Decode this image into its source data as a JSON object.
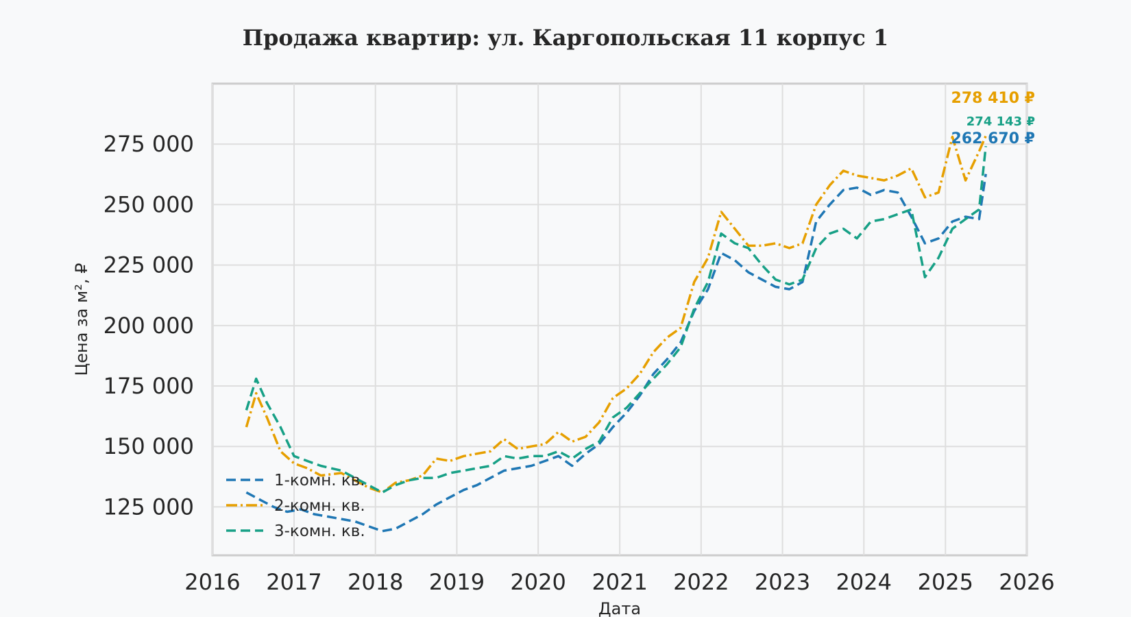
{
  "chart_data": {
    "type": "line",
    "title": "Продажа квартир: ул. Каргопольская 11 корпус 1",
    "xlabel": "Дата",
    "ylabel": "Цена за м², ₽",
    "xlim": [
      "2016-01-01",
      "2026-01-01"
    ],
    "ylim": [
      105000,
      300000
    ],
    "x_ticks": [
      "2016",
      "2017",
      "2018",
      "2019",
      "2020",
      "2021",
      "2022",
      "2023",
      "2024",
      "2025",
      "2026"
    ],
    "y_ticks": [
      125000,
      150000,
      175000,
      200000,
      225000,
      250000,
      275000
    ],
    "y_tick_labels": [
      "125 000",
      "150 000",
      "175 000",
      "200 000",
      "225 000",
      "250 000",
      "275 000"
    ],
    "grid": true,
    "legend_position": "lower-left",
    "series": [
      {
        "name": "1-комн. кв.",
        "color": "#1f77b4",
        "dash": "dashed",
        "end_label": "262 670 ₽",
        "points": [
          [
            "2016-06-01",
            131000
          ],
          [
            "2016-08-01",
            128000
          ],
          [
            "2016-10-01",
            125000
          ],
          [
            "2016-12-01",
            123000
          ],
          [
            "2017-02-01",
            124000
          ],
          [
            "2017-04-01",
            122000
          ],
          [
            "2017-06-01",
            121000
          ],
          [
            "2017-08-01",
            120000
          ],
          [
            "2017-10-01",
            119000
          ],
          [
            "2017-12-01",
            117000
          ],
          [
            "2018-02-01",
            115000
          ],
          [
            "2018-04-01",
            116000
          ],
          [
            "2018-06-01",
            119000
          ],
          [
            "2018-08-01",
            122000
          ],
          [
            "2018-10-01",
            126000
          ],
          [
            "2018-12-01",
            129000
          ],
          [
            "2019-02-01",
            132000
          ],
          [
            "2019-04-01",
            134000
          ],
          [
            "2019-06-01",
            137000
          ],
          [
            "2019-08-01",
            140000
          ],
          [
            "2019-10-01",
            141000
          ],
          [
            "2019-12-01",
            142000
          ],
          [
            "2020-02-01",
            144000
          ],
          [
            "2020-04-01",
            146000
          ],
          [
            "2020-06-01",
            142000
          ],
          [
            "2020-08-01",
            147000
          ],
          [
            "2020-10-01",
            151000
          ],
          [
            "2020-12-01",
            158000
          ],
          [
            "2021-02-01",
            164000
          ],
          [
            "2021-04-01",
            171000
          ],
          [
            "2021-06-01",
            180000
          ],
          [
            "2021-08-01",
            186000
          ],
          [
            "2021-10-01",
            193000
          ],
          [
            "2021-12-01",
            206000
          ],
          [
            "2022-02-01",
            215000
          ],
          [
            "2022-04-01",
            230000
          ],
          [
            "2022-06-01",
            227000
          ],
          [
            "2022-08-01",
            222000
          ],
          [
            "2022-10-01",
            219000
          ],
          [
            "2022-12-01",
            216000
          ],
          [
            "2023-02-01",
            215000
          ],
          [
            "2023-04-01",
            218000
          ],
          [
            "2023-06-01",
            243000
          ],
          [
            "2023-08-01",
            250000
          ],
          [
            "2023-10-01",
            256000
          ],
          [
            "2023-12-01",
            257000
          ],
          [
            "2024-02-01",
            254000
          ],
          [
            "2024-04-01",
            256000
          ],
          [
            "2024-06-01",
            255000
          ],
          [
            "2024-08-01",
            245000
          ],
          [
            "2024-10-01",
            234000
          ],
          [
            "2024-12-01",
            236000
          ],
          [
            "2025-02-01",
            243000
          ],
          [
            "2025-04-01",
            245000
          ],
          [
            "2025-06-01",
            244000
          ],
          [
            "2025-07-01",
            262670
          ]
        ]
      },
      {
        "name": "2-комн. кв.",
        "color": "#e69f00",
        "dash": "dashdot",
        "end_label": "278 410 ₽",
        "points": [
          [
            "2016-06-01",
            158000
          ],
          [
            "2016-07-15",
            172000
          ],
          [
            "2016-09-01",
            162000
          ],
          [
            "2016-11-01",
            148000
          ],
          [
            "2017-01-01",
            143000
          ],
          [
            "2017-03-01",
            141000
          ],
          [
            "2017-05-01",
            138000
          ],
          [
            "2017-08-01",
            139000
          ],
          [
            "2017-10-01",
            136000
          ],
          [
            "2017-12-01",
            133000
          ],
          [
            "2018-02-01",
            131000
          ],
          [
            "2018-04-01",
            135000
          ],
          [
            "2018-06-01",
            136000
          ],
          [
            "2018-08-01",
            138000
          ],
          [
            "2018-10-01",
            145000
          ],
          [
            "2018-12-01",
            144000
          ],
          [
            "2019-02-01",
            146000
          ],
          [
            "2019-04-01",
            147000
          ],
          [
            "2019-06-01",
            148000
          ],
          [
            "2019-08-01",
            153000
          ],
          [
            "2019-10-01",
            149000
          ],
          [
            "2019-12-01",
            150000
          ],
          [
            "2020-02-01",
            151000
          ],
          [
            "2020-04-01",
            156000
          ],
          [
            "2020-06-01",
            152000
          ],
          [
            "2020-08-01",
            154000
          ],
          [
            "2020-10-01",
            160000
          ],
          [
            "2020-12-01",
            170000
          ],
          [
            "2021-02-01",
            174000
          ],
          [
            "2021-04-01",
            180000
          ],
          [
            "2021-06-01",
            189000
          ],
          [
            "2021-08-01",
            195000
          ],
          [
            "2021-10-01",
            199000
          ],
          [
            "2021-12-01",
            218000
          ],
          [
            "2022-02-01",
            228000
          ],
          [
            "2022-04-01",
            247000
          ],
          [
            "2022-06-01",
            240000
          ],
          [
            "2022-08-01",
            233000
          ],
          [
            "2022-10-01",
            233000
          ],
          [
            "2022-12-01",
            234000
          ],
          [
            "2023-02-01",
            232000
          ],
          [
            "2023-04-01",
            234000
          ],
          [
            "2023-06-01",
            250000
          ],
          [
            "2023-08-01",
            258000
          ],
          [
            "2023-10-01",
            264000
          ],
          [
            "2023-12-01",
            262000
          ],
          [
            "2024-02-01",
            261000
          ],
          [
            "2024-04-01",
            260000
          ],
          [
            "2024-06-01",
            262000
          ],
          [
            "2024-08-01",
            265000
          ],
          [
            "2024-10-01",
            253000
          ],
          [
            "2024-12-01",
            255000
          ],
          [
            "2025-02-01",
            278000
          ],
          [
            "2025-04-01",
            260000
          ],
          [
            "2025-06-01",
            272000
          ],
          [
            "2025-07-01",
            278410
          ]
        ]
      },
      {
        "name": "3-комн. кв.",
        "color": "#17a086",
        "dash": "dashed",
        "end_label": "274 143 ₽",
        "points": [
          [
            "2016-06-01",
            165000
          ],
          [
            "2016-07-15",
            178000
          ],
          [
            "2016-09-01",
            168000
          ],
          [
            "2016-11-01",
            158000
          ],
          [
            "2017-01-01",
            146000
          ],
          [
            "2017-03-01",
            144000
          ],
          [
            "2017-05-01",
            142000
          ],
          [
            "2017-08-01",
            140000
          ],
          [
            "2017-10-01",
            137000
          ],
          [
            "2017-12-01",
            134000
          ],
          [
            "2018-02-01",
            131000
          ],
          [
            "2018-04-01",
            134000
          ],
          [
            "2018-06-01",
            136000
          ],
          [
            "2018-08-01",
            137000
          ],
          [
            "2018-10-01",
            137000
          ],
          [
            "2018-12-01",
            139000
          ],
          [
            "2019-02-01",
            140000
          ],
          [
            "2019-04-01",
            141000
          ],
          [
            "2019-06-01",
            142000
          ],
          [
            "2019-08-01",
            146000
          ],
          [
            "2019-10-01",
            145000
          ],
          [
            "2019-12-01",
            146000
          ],
          [
            "2020-02-01",
            146000
          ],
          [
            "2020-04-01",
            148000
          ],
          [
            "2020-06-01",
            145000
          ],
          [
            "2020-08-01",
            149000
          ],
          [
            "2020-10-01",
            152000
          ],
          [
            "2020-12-01",
            162000
          ],
          [
            "2021-02-01",
            166000
          ],
          [
            "2021-04-01",
            172000
          ],
          [
            "2021-06-01",
            178000
          ],
          [
            "2021-08-01",
            184000
          ],
          [
            "2021-10-01",
            191000
          ],
          [
            "2021-12-01",
            207000
          ],
          [
            "2022-02-01",
            218000
          ],
          [
            "2022-04-01",
            238000
          ],
          [
            "2022-06-01",
            234000
          ],
          [
            "2022-08-01",
            232000
          ],
          [
            "2022-10-01",
            225000
          ],
          [
            "2022-12-01",
            219000
          ],
          [
            "2023-02-01",
            217000
          ],
          [
            "2023-04-01",
            219000
          ],
          [
            "2023-06-01",
            232000
          ],
          [
            "2023-08-01",
            238000
          ],
          [
            "2023-10-01",
            240000
          ],
          [
            "2023-12-01",
            236000
          ],
          [
            "2024-02-01",
            243000
          ],
          [
            "2024-04-01",
            244000
          ],
          [
            "2024-06-01",
            246000
          ],
          [
            "2024-08-01",
            248000
          ],
          [
            "2024-10-01",
            220000
          ],
          [
            "2024-12-01",
            228000
          ],
          [
            "2025-02-01",
            240000
          ],
          [
            "2025-04-01",
            244000
          ],
          [
            "2025-06-01",
            248000
          ],
          [
            "2025-07-01",
            274143
          ]
        ]
      }
    ]
  }
}
